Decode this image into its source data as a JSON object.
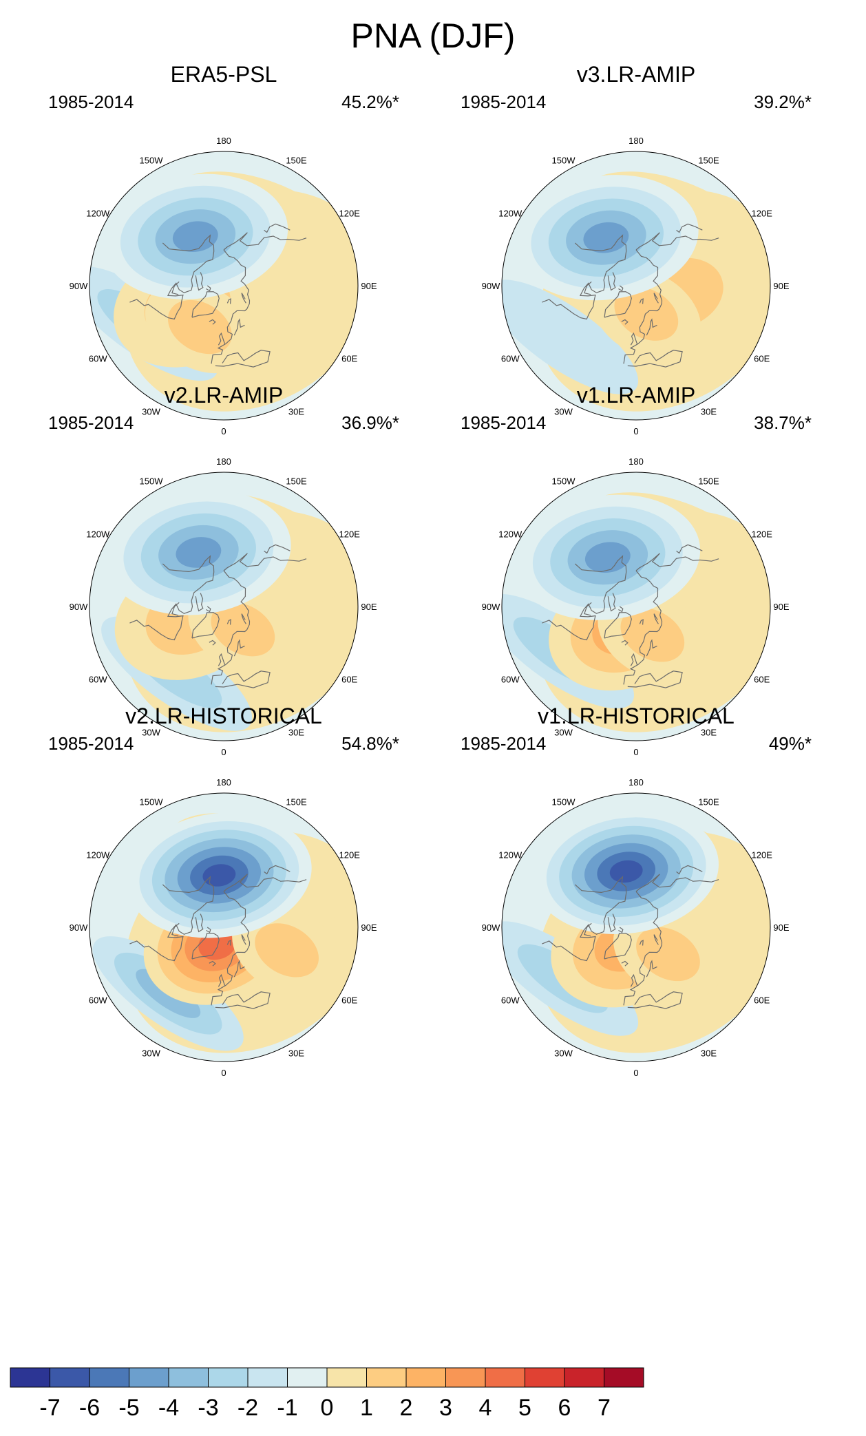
{
  "title": "PNA (DJF)",
  "panels": [
    {
      "title": "ERA5-PSL",
      "period": "1985-2014",
      "percent": "45.2%*",
      "low": {
        "lon": -150,
        "lat": 52,
        "min": -5.4
      },
      "highs": [
        {
          "lon": -60,
          "lat": 62,
          "max": 1.6
        },
        {
          "lon": -30,
          "lat": 58,
          "max": 1.5
        }
      ],
      "secondary_low": {
        "lon": -65,
        "lat": 30,
        "min": -1.5
      }
    },
    {
      "title": "v3.LR-AMIP",
      "period": "1985-2014",
      "percent": "39.2%*",
      "low": {
        "lon": -148,
        "lat": 52,
        "min": -5.2
      },
      "highs": [
        {
          "lon": 80,
          "lat": 60,
          "max": 2.3
        },
        {
          "lon": 20,
          "lat": 70,
          "max": 1.9
        }
      ],
      "secondary_low": {
        "lon": -55,
        "lat": 30,
        "min": -1.4
      }
    },
    {
      "title": "v2.LR-AMIP",
      "period": "1985-2014",
      "percent": "36.9%*",
      "low": {
        "lon": -155,
        "lat": 50,
        "min": -5.3
      },
      "highs": [
        {
          "lon": -70,
          "lat": 65,
          "max": 1.9
        },
        {
          "lon": 40,
          "lat": 70,
          "max": 1.5
        }
      ],
      "secondary_low": {
        "lon": -35,
        "lat": 35,
        "min": -1.7
      }
    },
    {
      "title": "v1.LR-AMIP",
      "period": "1985-2014",
      "percent": "38.7%*",
      "low": {
        "lon": -150,
        "lat": 52,
        "min": -5.3
      },
      "highs": [
        {
          "lon": -30,
          "lat": 72,
          "max": 2.6
        },
        {
          "lon": 30,
          "lat": 68,
          "max": 2.4
        }
      ],
      "secondary_low": {
        "lon": -60,
        "lat": 30,
        "min": -1.5
      }
    },
    {
      "title": "v2.LR-HISTORICAL",
      "period": "1985-2014",
      "percent": "54.8%*",
      "low": {
        "lon": -175,
        "lat": 55,
        "min": -6.8
      },
      "highs": [
        {
          "lon": -20,
          "lat": 78,
          "max": 4.6
        },
        {
          "lon": 70,
          "lat": 45,
          "max": 1.6
        }
      ],
      "secondary_low": {
        "lon": -40,
        "lat": 32,
        "min": -2.8
      }
    },
    {
      "title": "v1.LR-HISTORICAL",
      "period": "1985-2014",
      "percent": "49%*",
      "low": {
        "lon": -170,
        "lat": 52,
        "min": -6.5
      },
      "highs": [
        {
          "lon": -30,
          "lat": 75,
          "max": 2.6
        },
        {
          "lon": 50,
          "lat": 62,
          "max": 1.8
        }
      ],
      "secondary_low": {
        "lon": -55,
        "lat": 30,
        "min": -1.6
      }
    }
  ],
  "longitude_labels": [
    "180",
    "150E",
    "120E",
    "90E",
    "60E",
    "30E",
    "0",
    "30W",
    "60W",
    "90W",
    "120W",
    "150W"
  ],
  "colorbar": {
    "labels": [
      "-7",
      "-6",
      "-5",
      "-4",
      "-3",
      "-2",
      "-1",
      "0",
      "1",
      "2",
      "3",
      "4",
      "5",
      "6",
      "7"
    ],
    "colors": [
      "#2c3594",
      "#3b58a8",
      "#4b78b7",
      "#6c9fcd",
      "#8ebfdd",
      "#acd7e9",
      "#c9e5f0",
      "#e1f0f1",
      "#f7e4a9",
      "#fdcd82",
      "#fdb365",
      "#f89655",
      "#f06e46",
      "#e04133",
      "#c9232a",
      "#a50c26"
    ]
  }
}
